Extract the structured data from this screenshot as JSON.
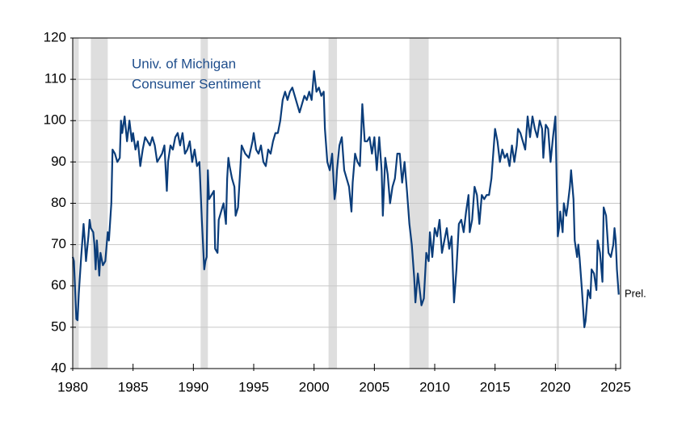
{
  "chart_data": {
    "type": "line",
    "title": [
      "Univ. of Michigan",
      "Consumer Sentiment"
    ],
    "annotation": "Prel.",
    "xlim": [
      1980,
      2025.4
    ],
    "ylim": [
      40,
      120
    ],
    "xticks": [
      1980,
      1985,
      1990,
      1995,
      2000,
      2005,
      2010,
      2015,
      2020,
      2025
    ],
    "yticks": [
      40,
      50,
      60,
      70,
      80,
      90,
      100,
      110,
      120
    ],
    "grid": true,
    "recession_color": "#dedede",
    "recessions": [
      [
        1980.0,
        1980.5
      ],
      [
        1981.5,
        1982.9
      ],
      [
        1990.6,
        1991.2
      ],
      [
        2001.2,
        2001.9
      ],
      [
        2007.9,
        2009.5
      ],
      [
        2020.1,
        2020.3
      ]
    ],
    "x": [
      1980.0,
      1980.1,
      1980.3,
      1980.4,
      1980.5,
      1980.7,
      1980.9,
      1981.0,
      1981.1,
      1981.3,
      1981.4,
      1981.5,
      1981.7,
      1981.8,
      1981.9,
      1982.0,
      1982.2,
      1982.3,
      1982.5,
      1982.7,
      1982.9,
      1983.0,
      1983.2,
      1983.3,
      1983.5,
      1983.7,
      1983.9,
      1984.0,
      1984.1,
      1984.3,
      1984.5,
      1984.7,
      1984.9,
      1985.0,
      1985.2,
      1985.4,
      1985.6,
      1985.8,
      1986.0,
      1986.2,
      1986.4,
      1986.6,
      1986.8,
      1987.0,
      1987.2,
      1987.4,
      1987.6,
      1987.8,
      1987.9,
      1988.1,
      1988.3,
      1988.5,
      1988.7,
      1988.9,
      1989.1,
      1989.3,
      1989.5,
      1989.7,
      1989.9,
      1990.1,
      1990.3,
      1990.5,
      1990.7,
      1990.8,
      1990.9,
      1991.0,
      1991.1,
      1991.2,
      1991.3,
      1991.5,
      1991.7,
      1991.8,
      1992.0,
      1992.1,
      1992.3,
      1992.5,
      1992.7,
      1992.8,
      1992.9,
      1993.0,
      1993.2,
      1993.4,
      1993.5,
      1993.7,
      1993.9,
      1994.0,
      1994.3,
      1994.6,
      1994.9,
      1995.0,
      1995.2,
      1995.4,
      1995.6,
      1995.8,
      1996.0,
      1996.2,
      1996.4,
      1996.6,
      1996.8,
      1997.0,
      1997.2,
      1997.4,
      1997.6,
      1997.8,
      1998.0,
      1998.2,
      1998.4,
      1998.6,
      1998.8,
      1999.0,
      1999.2,
      1999.4,
      1999.6,
      1999.8,
      2000.0,
      2000.2,
      2000.4,
      2000.6,
      2000.8,
      2000.9,
      2001.1,
      2001.3,
      2001.5,
      2001.7,
      2001.8,
      2001.9,
      2002.1,
      2002.3,
      2002.5,
      2002.7,
      2002.9,
      2003.1,
      2003.2,
      2003.4,
      2003.6,
      2003.8,
      2004.0,
      2004.2,
      2004.4,
      2004.6,
      2004.8,
      2005.0,
      2005.2,
      2005.4,
      2005.6,
      2005.7,
      2005.9,
      2006.1,
      2006.3,
      2006.5,
      2006.7,
      2006.9,
      2007.1,
      2007.3,
      2007.5,
      2007.7,
      2007.9,
      2008.1,
      2008.3,
      2008.4,
      2008.6,
      2008.8,
      2008.9,
      2009.1,
      2009.3,
      2009.5,
      2009.6,
      2009.8,
      2010.0,
      2010.2,
      2010.4,
      2010.6,
      2010.8,
      2011.0,
      2011.2,
      2011.4,
      2011.6,
      2011.8,
      2012.0,
      2012.2,
      2012.4,
      2012.6,
      2012.8,
      2012.9,
      2013.1,
      2013.3,
      2013.5,
      2013.7,
      2013.9,
      2014.1,
      2014.3,
      2014.5,
      2014.7,
      2014.9,
      2015.0,
      2015.2,
      2015.4,
      2015.6,
      2015.8,
      2016.0,
      2016.2,
      2016.4,
      2016.6,
      2016.8,
      2016.9,
      2017.1,
      2017.3,
      2017.5,
      2017.7,
      2017.9,
      2018.1,
      2018.3,
      2018.5,
      2018.7,
      2018.9,
      2019.0,
      2019.2,
      2019.4,
      2019.6,
      2019.8,
      2020.0,
      2020.2,
      2020.3,
      2020.4,
      2020.6,
      2020.7,
      2020.9,
      2021.0,
      2021.2,
      2021.3,
      2021.5,
      2021.6,
      2021.8,
      2021.9,
      2022.0,
      2022.2,
      2022.4,
      2022.5,
      2022.7,
      2022.9,
      2023.0,
      2023.2,
      2023.4,
      2023.5,
      2023.7,
      2023.9,
      2024.0,
      2024.2,
      2024.4,
      2024.6,
      2024.8,
      2024.9,
      2025.0,
      2025.1,
      2025.25
    ],
    "series": [
      {
        "name": "Univ. of Michigan Consumer Sentiment",
        "color": "#0b3d7a",
        "values": [
          67,
          66,
          52,
          51.7,
          58,
          67,
          75,
          71,
          66,
          72,
          76,
          74,
          73,
          70,
          64,
          71,
          62.5,
          68,
          65,
          66,
          73,
          71,
          80,
          93,
          92,
          90,
          91,
          100,
          97,
          101,
          95,
          100,
          95,
          97,
          93,
          95,
          89,
          93,
          96,
          95,
          94,
          96,
          94,
          90,
          91,
          92,
          94,
          83,
          90,
          94,
          93,
          96,
          97,
          94,
          97,
          92,
          93,
          95,
          90,
          93,
          89,
          90,
          76,
          70,
          64,
          66,
          67,
          88,
          81,
          82,
          83,
          69,
          68,
          76,
          78,
          80,
          75,
          86,
          91,
          89,
          86,
          84,
          77,
          79,
          89,
          94,
          92,
          91,
          95,
          97,
          93,
          92,
          94,
          90,
          89,
          93,
          92,
          95,
          97,
          97,
          100,
          105,
          107,
          105,
          107,
          108,
          106,
          104,
          102,
          104,
          106,
          105,
          107,
          105,
          112,
          107,
          108,
          106,
          107,
          98,
          90,
          88,
          92,
          81,
          83,
          88,
          94,
          96,
          88,
          86,
          84,
          78,
          85,
          92,
          90,
          89,
          104,
          95,
          95,
          96,
          92,
          96,
          88,
          96,
          88,
          77,
          91,
          87,
          80,
          84,
          86,
          92,
          92,
          85,
          90,
          83,
          75,
          70,
          62,
          56,
          63,
          58,
          55.3,
          57,
          68,
          66,
          73,
          67,
          74,
          72,
          76,
          68,
          71,
          74,
          69,
          72,
          56,
          64,
          75,
          76,
          73,
          78,
          82,
          73,
          76,
          84,
          82,
          75,
          82,
          81,
          82,
          82,
          86,
          94,
          98,
          95,
          90,
          93,
          91,
          92,
          89,
          94,
          90,
          94,
          98,
          97,
          95,
          93,
          101,
          96,
          101,
          98,
          96,
          100,
          98,
          91,
          99,
          98,
          90,
          96,
          101,
          72,
          74,
          78,
          73,
          80,
          77,
          79,
          84,
          88,
          81,
          71,
          67,
          70,
          67,
          59,
          50,
          51.5,
          59,
          57,
          64,
          63,
          59,
          71,
          68,
          61,
          79,
          77,
          68,
          67,
          70,
          74,
          71,
          64,
          57.9
        ]
      }
    ]
  }
}
